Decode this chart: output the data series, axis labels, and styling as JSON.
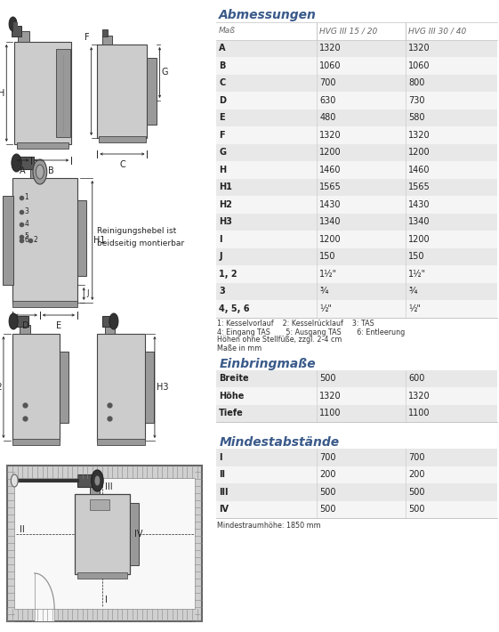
{
  "title_abmessungen": "Abmessungen",
  "title_einbring": "Einbringmaße",
  "title_mindest": "Mindestabstände",
  "header": [
    "Maß",
    "HVG III 15 / 20",
    "HVG III 30 / 40"
  ],
  "abmessungen_rows": [
    [
      "A",
      "1320",
      "1320"
    ],
    [
      "B",
      "1060",
      "1060"
    ],
    [
      "C",
      "700",
      "800"
    ],
    [
      "D",
      "630",
      "730"
    ],
    [
      "E",
      "480",
      "580"
    ],
    [
      "F",
      "1320",
      "1320"
    ],
    [
      "G",
      "1200",
      "1200"
    ],
    [
      "H",
      "1460",
      "1460"
    ],
    [
      "H1",
      "1565",
      "1565"
    ],
    [
      "H2",
      "1430",
      "1430"
    ],
    [
      "H3",
      "1340",
      "1340"
    ],
    [
      "I",
      "1200",
      "1200"
    ],
    [
      "J",
      "150",
      "150"
    ],
    [
      "1, 2",
      "1½\"",
      "1½\""
    ],
    [
      "3",
      "¾",
      "¾"
    ],
    [
      "4, 5, 6",
      "½\"",
      "½\""
    ]
  ],
  "footnote_lines": [
    "1: Kesselvorlauf    2: Kesselrücklauf    3: TAS",
    "4: Eingang TAS       5: Ausgang TAS       6: Entleerung",
    "Höhen ohne Stellfüße, zzgl. 2-4 cm",
    "Maße in mm"
  ],
  "einbring_rows": [
    [
      "Breite",
      "500",
      "600"
    ],
    [
      "Höhe",
      "1320",
      "1320"
    ],
    [
      "Tiefe",
      "1100",
      "1100"
    ]
  ],
  "mindest_rows": [
    [
      "I",
      "700",
      "700"
    ],
    [
      "II",
      "200",
      "200"
    ],
    [
      "III",
      "500",
      "500"
    ],
    [
      "IV",
      "500",
      "500"
    ]
  ],
  "mindest_footnote": "Mindestraumhöhe: 1850 mm",
  "row_odd_color": "#e8e8e8",
  "row_even_color": "#f5f5f5",
  "header_color": "#3a5a8a",
  "bg_color": "#ffffff",
  "black": "#222222",
  "boiler_fill": "#cccccc",
  "boiler_dark": "#999999",
  "boiler_darker": "#666666",
  "pipe_fill": "#555555",
  "pipe_dark": "#333333",
  "wall_fill": "#c8c8c8",
  "wall_edge": "#555555"
}
